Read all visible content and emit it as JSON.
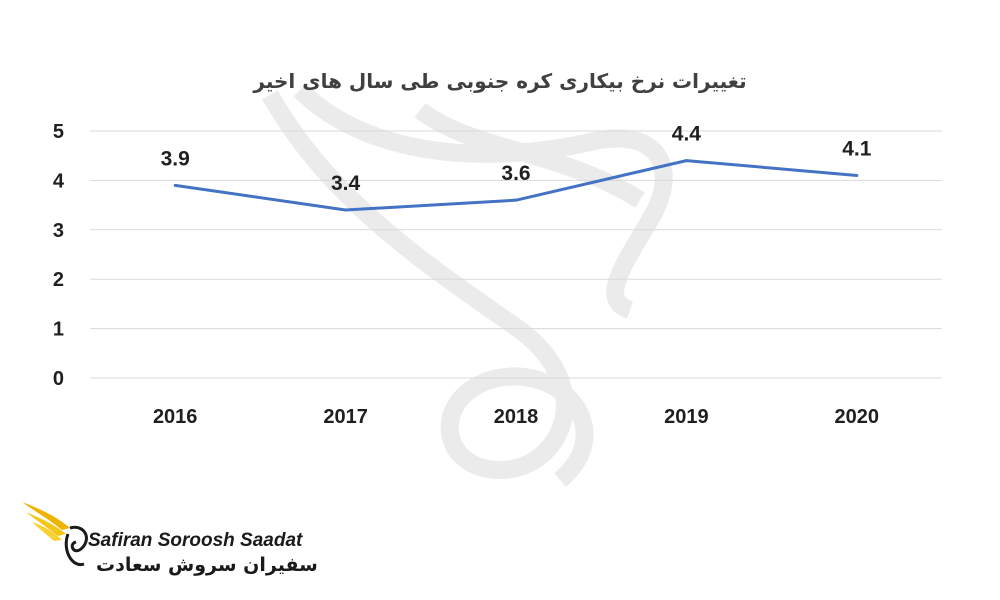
{
  "chart_data": {
    "type": "line",
    "title": "تغییرات نرخ بیکاری کره جنوبی طی سال های اخیر",
    "categories": [
      "2016",
      "2017",
      "2018",
      "2019",
      "2020"
    ],
    "series": [
      {
        "values": [
          3.9,
          3.4,
          3.6,
          4.4,
          4.1
        ],
        "labels": [
          "3.9",
          "3.4",
          "3.6",
          "4.4",
          "4.1"
        ],
        "color": "#4472c4"
      }
    ],
    "ylim": [
      0,
      5
    ],
    "yticks": [
      "0",
      "1",
      "2",
      "3",
      "4",
      "5"
    ],
    "grid": true,
    "legend": "none"
  },
  "logo": {
    "name_en": "Safiran Soroosh Saadat",
    "name_fa": "سفیران سروش سعادت",
    "colors": {
      "wing": "#f0b400",
      "text": "#1a1a1a"
    },
    "icon": "bird-wing-logo-icon"
  },
  "watermark": {
    "icon": "bird-watermark-icon",
    "color": "#e8e8e8"
  }
}
